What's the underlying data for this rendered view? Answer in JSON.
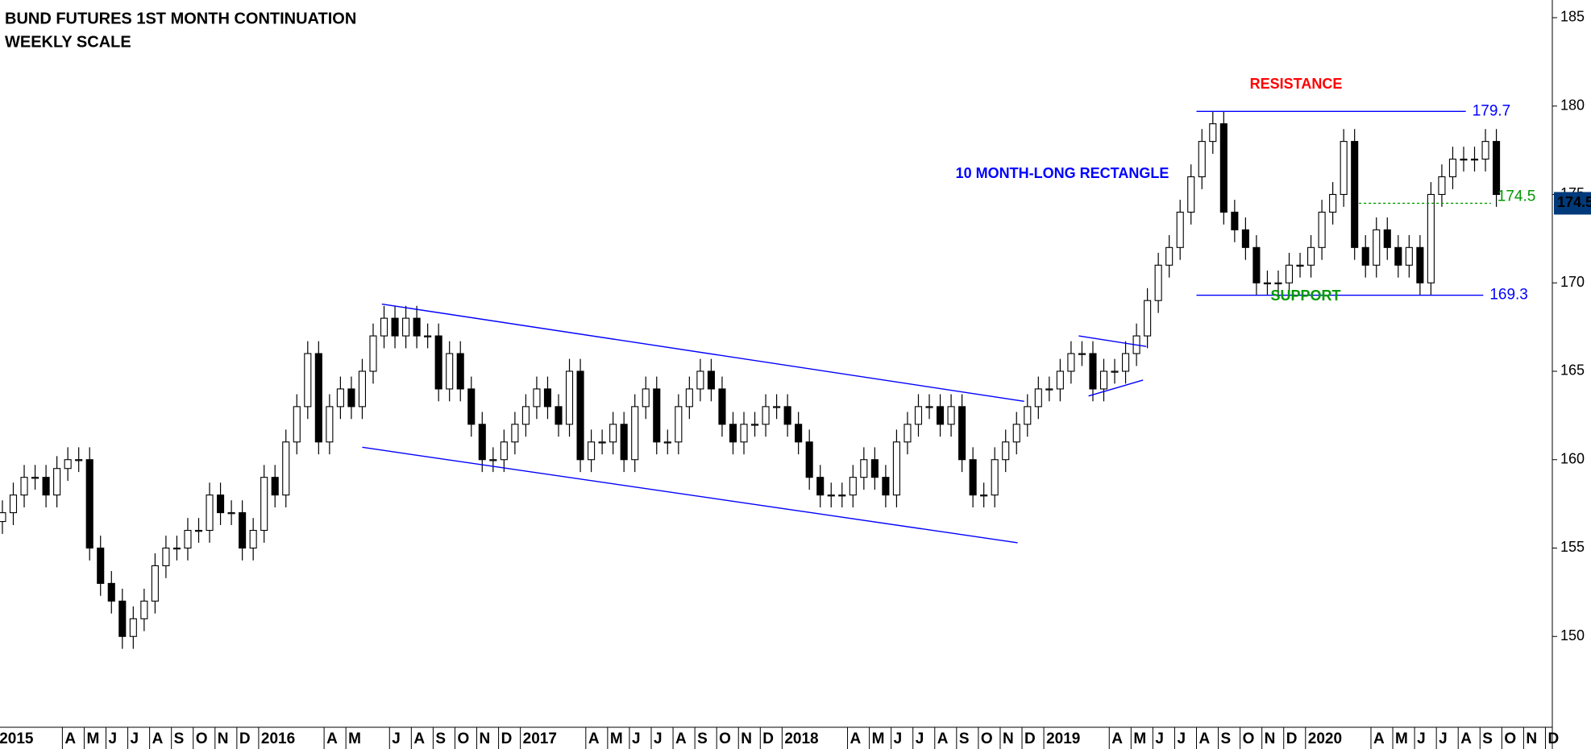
{
  "chart_data": {
    "type": "candlestick",
    "title": "BUND FUTURES 1ST MONTH CONTINUATION",
    "subtitle": "WEEKLY SCALE",
    "categories": [
      "2015",
      null,
      null,
      null,
      null,
      null,
      "A",
      null,
      "M",
      null,
      "J",
      null,
      "J",
      null,
      "A",
      null,
      "S",
      null,
      "O",
      null,
      "N",
      null,
      "D",
      null,
      "2016",
      null,
      null,
      null,
      null,
      null,
      "A",
      null,
      "M",
      null,
      null,
      null,
      "J",
      null,
      "A",
      null,
      "S",
      null,
      "O",
      null,
      "N",
      null,
      "D",
      null,
      "2017",
      null,
      null,
      null,
      null,
      null,
      "A",
      null,
      "M",
      null,
      "J",
      null,
      "J",
      null,
      "A",
      null,
      "S",
      null,
      "O",
      null,
      "N",
      null,
      "D",
      null,
      "2018",
      null,
      null,
      null,
      null,
      null,
      "A",
      null,
      "M",
      null,
      "J",
      null,
      "J",
      null,
      "A",
      null,
      "S",
      null,
      "O",
      null,
      "N",
      null,
      "D",
      null,
      "2019",
      null,
      null,
      null,
      null,
      null,
      "A",
      null,
      "M",
      null,
      "J",
      null,
      "J",
      null,
      "A",
      null,
      "S",
      null,
      "O",
      null,
      "N",
      null,
      "D",
      null,
      "2020",
      null,
      null,
      null,
      null,
      null,
      "A",
      null,
      "M",
      null,
      "J",
      null,
      "J",
      null,
      "A",
      null,
      "S",
      null,
      "O",
      null,
      "N",
      null,
      "D",
      null
    ],
    "open": [
      156.5,
      157,
      158,
      159,
      159,
      158,
      159.5,
      160,
      160,
      155,
      153,
      152,
      150,
      151,
      152,
      154,
      155,
      155,
      156,
      156,
      158,
      157,
      157,
      155,
      156,
      159,
      158,
      161,
      163,
      166,
      161,
      163,
      164,
      163,
      165,
      167,
      168,
      167,
      168,
      167,
      167,
      164,
      166,
      164,
      162,
      160,
      160,
      161,
      162,
      163,
      164,
      163,
      162,
      165,
      160,
      161,
      161,
      162,
      160,
      163,
      164,
      161,
      161,
      163,
      164,
      165,
      164,
      162,
      161,
      162,
      162,
      163,
      163,
      162,
      161,
      159,
      158,
      158,
      158,
      159,
      160,
      159,
      158,
      161,
      162,
      163,
      163,
      162,
      163,
      160,
      158,
      158,
      160,
      161,
      162,
      163,
      164,
      164,
      165,
      166,
      166,
      164,
      165,
      165,
      166,
      167,
      169,
      171,
      172,
      174,
      176,
      178,
      179,
      174,
      173,
      172,
      170,
      170,
      170,
      171,
      171,
      172,
      174,
      175,
      178,
      172,
      171,
      173,
      172,
      171,
      172,
      170,
      175,
      176,
      177,
      177,
      177,
      178,
      null,
      null,
      null,
      null,
      null,
      null
    ],
    "high": [
      157.7,
      158.7,
      159.7,
      159.7,
      159.7,
      160.2,
      160.7,
      160.7,
      160.7,
      155.7,
      153.7,
      152.7,
      151.7,
      152.7,
      154.7,
      155.7,
      155.7,
      156.7,
      156.7,
      158.7,
      158.7,
      157.7,
      157.7,
      156.7,
      159.7,
      159.7,
      161.7,
      163.7,
      166.7,
      166.7,
      163.7,
      164.7,
      164.7,
      165.7,
      167.7,
      168.7,
      168.7,
      168.7,
      168.7,
      167.7,
      167.7,
      166.7,
      166.7,
      164.7,
      162.7,
      160.7,
      161.7,
      162.7,
      163.7,
      164.7,
      164.7,
      163.7,
      165.7,
      165.7,
      161.7,
      161.7,
      162.7,
      162.7,
      163.7,
      164.7,
      164.7,
      161.7,
      163.7,
      164.7,
      165.7,
      165.7,
      164.7,
      162.7,
      162.7,
      162.7,
      163.7,
      163.7,
      163.7,
      162.7,
      161.7,
      159.7,
      158.7,
      158.7,
      159.7,
      160.7,
      160.7,
      159.7,
      161.7,
      162.7,
      163.7,
      163.7,
      163.7,
      163.7,
      163.7,
      160.7,
      158.7,
      160.7,
      161.7,
      162.7,
      163.7,
      164.7,
      164.7,
      165.7,
      166.7,
      166.7,
      166.7,
      165.7,
      165.7,
      166.7,
      167.7,
      169.7,
      171.7,
      172.7,
      174.7,
      176.7,
      178.7,
      179.7,
      179.7,
      174.7,
      173.7,
      172.7,
      170.7,
      170.7,
      171.7,
      171.7,
      172.7,
      174.7,
      175.7,
      178.7,
      178.7,
      172.7,
      173.7,
      173.7,
      172.7,
      172.7,
      172.7,
      175.7,
      176.7,
      177.7,
      177.7,
      177.7,
      178.7,
      178.7,
      null,
      null,
      null,
      null,
      null,
      null
    ],
    "low": [
      155.8,
      156.3,
      157.3,
      158.3,
      157.3,
      157.3,
      158.8,
      159.3,
      154.3,
      152.3,
      151.3,
      149.3,
      149.3,
      150.3,
      151.3,
      153.3,
      154.3,
      154.3,
      155.3,
      155.3,
      156.3,
      156.3,
      154.3,
      154.3,
      155.3,
      157.3,
      157.3,
      160.3,
      162.3,
      160.3,
      160.3,
      162.3,
      162.3,
      162.3,
      164.3,
      166.3,
      166.3,
      166.3,
      166.3,
      166.3,
      163.3,
      163.3,
      163.3,
      161.3,
      159.3,
      159.3,
      159.3,
      160.3,
      161.3,
      162.3,
      162.3,
      161.3,
      161.3,
      159.3,
      159.3,
      160.3,
      160.3,
      159.3,
      159.3,
      162.3,
      160.3,
      160.3,
      160.3,
      162.3,
      163.3,
      163.3,
      161.3,
      160.3,
      160.3,
      161.3,
      161.3,
      162.3,
      161.3,
      160.3,
      158.3,
      157.3,
      157.3,
      157.3,
      157.3,
      158.3,
      158.3,
      157.3,
      157.3,
      160.3,
      161.3,
      162.3,
      161.3,
      161.3,
      159.3,
      157.3,
      157.3,
      157.3,
      159.3,
      160.3,
      161.3,
      162.3,
      163.3,
      163.3,
      164.3,
      165.3,
      163.3,
      163.3,
      164.3,
      164.3,
      165.3,
      166.3,
      168.3,
      170.3,
      171.3,
      173.3,
      175.3,
      177.3,
      173.3,
      172.3,
      171.3,
      169.3,
      169.3,
      169.3,
      169.3,
      170.3,
      170.3,
      171.3,
      173.3,
      174.3,
      171.3,
      170.3,
      170.3,
      171.3,
      170.3,
      170.3,
      169.3,
      169.3,
      174.3,
      175.3,
      176.3,
      176.3,
      176.3,
      174.3,
      null,
      null,
      null,
      null,
      null,
      null
    ],
    "close": [
      157,
      158,
      159,
      159,
      158,
      159.5,
      160,
      160,
      155,
      153,
      152,
      150,
      151,
      152,
      154,
      155,
      155,
      156,
      156,
      158,
      157,
      157,
      155,
      156,
      159,
      158,
      161,
      163,
      166,
      161,
      163,
      164,
      163,
      165,
      167,
      168,
      167,
      168,
      167,
      167,
      164,
      166,
      164,
      162,
      160,
      160,
      161,
      162,
      163,
      164,
      163,
      162,
      165,
      160,
      161,
      161,
      162,
      160,
      163,
      164,
      161,
      161,
      163,
      164,
      165,
      164,
      162,
      161,
      162,
      162,
      163,
      163,
      162,
      161,
      159,
      158,
      158,
      158,
      159,
      160,
      159,
      158,
      161,
      162,
      163,
      163,
      162,
      163,
      160,
      158,
      158,
      160,
      161,
      162,
      163,
      164,
      164,
      165,
      166,
      166,
      164,
      165,
      165,
      166,
      167,
      169,
      171,
      172,
      174,
      176,
      178,
      179,
      174,
      173,
      172,
      170,
      170,
      170,
      171,
      171,
      172,
      174,
      175,
      178,
      172,
      171,
      173,
      172,
      171,
      172,
      170,
      175,
      176,
      177,
      177,
      177,
      178,
      175,
      null,
      null,
      null,
      null,
      null,
      null
    ],
    "up_color": "#ffffff",
    "down_color": "#000000",
    "ylim": [
      145,
      186
    ],
    "yticks": [
      150,
      155,
      160,
      165,
      170,
      175,
      180,
      185
    ],
    "trendlines": [
      {
        "x": [
          34.8,
          93.7
        ],
        "y": [
          168.8,
          163.3
        ],
        "color": "#0000ff"
      },
      {
        "x": [
          33,
          93.1
        ],
        "y": [
          160.7,
          155.3
        ],
        "color": "#0000ff"
      },
      {
        "x": [
          98.7,
          104.9
        ],
        "y": [
          167.0,
          166.4
        ],
        "color": "#0000ff"
      },
      {
        "x": [
          99.6,
          104.6
        ],
        "y": [
          163.6,
          164.5
        ],
        "color": "#0000ff"
      }
    ],
    "levels": [
      {
        "value": 179.7,
        "x": [
          109.5,
          134.2
        ],
        "color": "#0000ff"
      },
      {
        "value": 169.3,
        "x": [
          109.5,
          135.8
        ],
        "color": "#0000ff"
      },
      {
        "value": 174.5,
        "x": [
          124.4,
          136.5
        ],
        "color": "#009900",
        "dashed": true
      }
    ],
    "last_price": 174.5,
    "last_price_color": "#003a7a",
    "annotations": [
      {
        "text": "RESISTANCE",
        "color": "#ff0000"
      },
      {
        "text": "10 MONTH-LONG RECTANGLE",
        "color": "#0000ff"
      },
      {
        "text": "SUPPORT",
        "color": "#009900"
      }
    ]
  }
}
